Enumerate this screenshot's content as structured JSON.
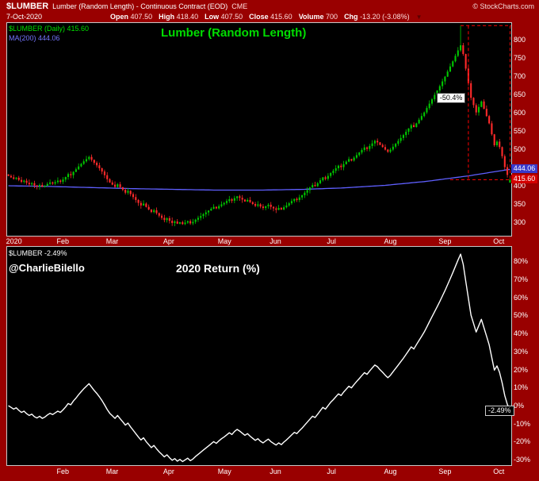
{
  "colors": {
    "frame_bg": "#990000",
    "plot_bg": "#000000",
    "plot_border": "#c6c6c6",
    "up_candle": "#00c800",
    "down_candle": "#ff2a2a",
    "ma_line": "#5f5fff",
    "ma_tag_bg": "#3939cc",
    "last_tag_bg": "#d40000",
    "title_green": "#00dd00",
    "annotation_red": "#ff0000",
    "return_line": "#ffffff",
    "text": "#ffffff"
  },
  "header": {
    "symbol": "$LUMBER",
    "description": "Lumber (Random Length) - Continuous Contract (EOD)",
    "exchange": "CME",
    "copyright": "© StockCharts.com",
    "date": "7-Oct-2020",
    "quote": [
      {
        "label": "Open",
        "value": "407.50"
      },
      {
        "label": "High",
        "value": "418.40"
      },
      {
        "label": "Low",
        "value": "407.50"
      },
      {
        "label": "Close",
        "value": "415.60"
      },
      {
        "label": "Volume",
        "value": "700"
      },
      {
        "label": "Chg",
        "value": "-13.20 (-3.08%)"
      }
    ],
    "change_direction_icon": "▼"
  },
  "price_chart": {
    "legend_main": "$LUMBER (Daily) 415.60",
    "legend_ma": "MA(200) 444.06",
    "title": "Lumber (Random Length)",
    "annotation_label": "-50.4%",
    "ma_tag": "444.06",
    "last_tag": "415.60"
  },
  "return_chart": {
    "legend": "$LUMBER -2.49%",
    "watermark": "@CharlieBilello",
    "title": "2020 Return (%)",
    "end_tag": "-2.49%"
  },
  "chart_data": [
    {
      "type": "candlestick",
      "title": "Lumber (Random Length)",
      "xlabel": "",
      "ylabel": "",
      "legend": [
        "$LUMBER (Daily) 415.60",
        "MA(200) 444.06"
      ],
      "y_ticks": [
        300,
        350,
        400,
        450,
        500,
        550,
        600,
        650,
        700,
        750,
        800
      ],
      "ylim": [
        262,
        845
      ],
      "x_labels": [
        "2020",
        "Feb",
        "Mar",
        "Apr",
        "May",
        "Jun",
        "Jul",
        "Aug",
        "Sep",
        "Oct"
      ],
      "month_start_index": [
        0,
        21,
        40,
        62,
        83,
        103,
        125,
        147,
        168,
        189
      ],
      "open_first": 430,
      "closes": [
        426,
        422,
        418,
        421,
        415,
        410,
        413,
        407,
        403,
        406,
        400,
        397,
        401,
        396,
        399,
        404,
        408,
        405,
        409,
        413,
        410,
        416,
        423,
        431,
        428,
        437,
        444,
        452,
        459,
        466,
        472,
        478,
        470,
        462,
        455,
        447,
        438,
        428,
        417,
        408,
        402,
        396,
        403,
        395,
        388,
        380,
        385,
        376,
        368,
        360,
        352,
        345,
        350,
        341,
        334,
        327,
        332,
        324,
        317,
        311,
        305,
        310,
        303,
        297,
        301,
        295,
        299,
        294,
        298,
        302,
        296,
        300,
        306,
        311,
        316,
        321,
        326,
        331,
        336,
        341,
        337,
        343,
        348,
        352,
        357,
        362,
        358,
        365,
        370,
        366,
        361,
        356,
        360,
        354,
        349,
        344,
        348,
        342,
        338,
        343,
        347,
        341,
        337,
        333,
        338,
        334,
        340,
        345,
        351,
        357,
        363,
        360,
        367,
        373,
        380,
        387,
        394,
        401,
        398,
        406,
        414,
        422,
        418,
        426,
        434,
        440,
        447,
        454,
        450,
        458,
        465,
        472,
        468,
        476,
        483,
        490,
        497,
        504,
        500,
        508,
        515,
        522,
        518,
        511,
        505,
        498,
        492,
        498,
        506,
        514,
        522,
        530,
        538,
        547,
        556,
        565,
        560,
        570,
        580,
        590,
        600,
        612,
        624,
        636,
        648,
        660,
        672,
        685,
        698,
        712,
        726,
        740,
        755,
        770,
        784,
        760,
        720,
        680,
        640,
        620,
        600,
        615,
        630,
        610,
        590,
        570,
        540,
        510,
        520,
        505,
        480,
        450,
        428.8,
        415.6
      ],
      "last_ohlc": [
        407.5,
        418.4,
        407.5,
        415.6
      ],
      "peak_index": 174,
      "peak_high": 838,
      "last_close": 415.6,
      "ma200": [
        399,
        397,
        394,
        391,
        389,
        387,
        387,
        389,
        393,
        400,
        411,
        426,
        444.06
      ],
      "ma_last": 444.06,
      "decline_from_high_pct": -50.4
    },
    {
      "type": "line",
      "title": "2020 Return (%)",
      "series_name": "$LUMBER",
      "xlabel": "",
      "ylabel": "",
      "base_value": 426.2,
      "note": "return_pct[i] = (closes[i] of chart 0 / base_value - 1) * 100",
      "y_ticks_pct": [
        80,
        70,
        60,
        50,
        40,
        30,
        20,
        10,
        0,
        -10,
        -20,
        -30
      ],
      "ylim_pct": [
        -33,
        88
      ],
      "x_labels": [
        "Feb",
        "Mar",
        "Apr",
        "May",
        "Jun",
        "Jul",
        "Aug",
        "Sep",
        "Oct"
      ],
      "month_start_index": [
        21,
        40,
        62,
        83,
        103,
        125,
        147,
        168,
        189
      ],
      "peak_pct": 83.9,
      "min_pct": -31.0,
      "end_pct": -2.49
    }
  ]
}
